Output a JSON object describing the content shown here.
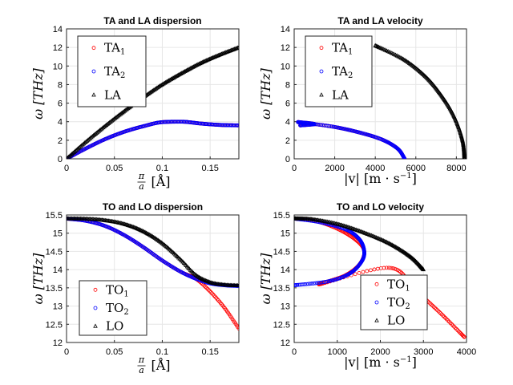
{
  "chart_data": [
    {
      "type": "scatter",
      "title": "TA and LA dispersion",
      "ylabel": "ω  [THz]",
      "xlabel_frac": [
        "π",
        "a"
      ],
      "xlabel_unit": "[Å]",
      "xlim": [
        0,
        0.18
      ],
      "ylim": [
        0,
        14
      ],
      "xticks": [
        "0",
        "0.05",
        "0.1",
        "0.15"
      ],
      "yticks": [
        "0",
        "2",
        "4",
        "6",
        "8",
        "10",
        "12",
        "14"
      ],
      "grid": true,
      "legend": {
        "placement": "top-left",
        "entries": [
          {
            "base": "TA",
            "sub": "1",
            "color": "#ff0000",
            "marker": "circle"
          },
          {
            "base": "TA",
            "sub": "2",
            "color": "#0000ff",
            "marker": "circle"
          },
          {
            "base": "LA",
            "sub": "",
            "color": "#000000",
            "marker": "triangle"
          }
        ]
      },
      "series": [
        {
          "name": "TA₁",
          "color": "#ff0000",
          "marker": "circle",
          "curve": "x",
          "x": [
            0,
            0.02,
            0.04,
            0.06,
            0.08,
            0.1,
            0.12,
            0.14,
            0.16,
            0.18
          ],
          "y": [
            0,
            1.1,
            2.1,
            2.9,
            3.5,
            3.95,
            4.0,
            3.8,
            3.65,
            3.6
          ]
        },
        {
          "name": "TA₂",
          "color": "#0000ff",
          "marker": "circle",
          "curve": "x",
          "x": [
            0,
            0.02,
            0.04,
            0.06,
            0.08,
            0.1,
            0.12,
            0.14,
            0.16,
            0.18
          ],
          "y": [
            0,
            1.1,
            2.1,
            2.9,
            3.5,
            3.95,
            4.0,
            3.8,
            3.65,
            3.6
          ]
        },
        {
          "name": "LA",
          "color": "#000000",
          "marker": "triangle",
          "curve": "x",
          "x": [
            0,
            0.02,
            0.04,
            0.06,
            0.08,
            0.1,
            0.12,
            0.14,
            0.16,
            0.18
          ],
          "y": [
            0,
            1.8,
            3.5,
            5.1,
            6.6,
            8.0,
            9.2,
            10.3,
            11.2,
            12.0
          ]
        }
      ]
    },
    {
      "type": "scatter",
      "title": "TA and LA velocity",
      "ylabel": "ω  [THz]",
      "xlabel_main": "|v|  [m · s",
      "xlabel_exp": "−1",
      "xlabel_close": "]",
      "xlim": [
        0,
        8500
      ],
      "ylim": [
        0,
        14
      ],
      "xticks": [
        "0",
        "2000",
        "4000",
        "6000",
        "8000"
      ],
      "yticks": [
        "0",
        "2",
        "4",
        "6",
        "8",
        "10",
        "12",
        "14"
      ],
      "grid": true,
      "legend": {
        "placement": "top-left",
        "entries": [
          {
            "base": "TA",
            "sub": "1",
            "color": "#ff0000",
            "marker": "circle"
          },
          {
            "base": "TA",
            "sub": "2",
            "color": "#0000ff",
            "marker": "circle"
          },
          {
            "base": "LA",
            "sub": "",
            "color": "#000000",
            "marker": "triangle"
          }
        ]
      },
      "series": [
        {
          "name": "TA₁",
          "color": "#ff0000",
          "marker": "circle",
          "curve": "y",
          "x": [
            5450,
            5100,
            4300,
            3100,
            1800,
            200,
            1000,
            300
          ],
          "y": [
            0,
            1.1,
            2.1,
            2.9,
            3.5,
            3.95,
            3.75,
            3.6
          ]
        },
        {
          "name": "TA₂",
          "color": "#0000ff",
          "marker": "circle",
          "curve": "y",
          "x": [
            5450,
            5100,
            4300,
            3100,
            1800,
            200,
            1000,
            300
          ],
          "y": [
            0,
            1.1,
            2.1,
            2.9,
            3.5,
            3.95,
            3.75,
            3.6
          ]
        },
        {
          "name": "LA",
          "color": "#000000",
          "marker": "triangle",
          "curve": "y",
          "x": [
            8400,
            8300,
            7900,
            7300,
            6500,
            5400,
            4000
          ],
          "y": [
            0,
            2.0,
            4.5,
            6.7,
            8.8,
            10.7,
            12.2
          ]
        }
      ]
    },
    {
      "type": "scatter",
      "title": "TO and LO dispersion",
      "ylabel": "ω  [THz]",
      "xlabel_frac": [
        "π",
        "a"
      ],
      "xlabel_unit": "[Å]",
      "xlim": [
        0,
        0.18
      ],
      "ylim": [
        12,
        15.5
      ],
      "xticks": [
        "0",
        "0.05",
        "0.1",
        "0.15"
      ],
      "yticks": [
        "12",
        "12.5",
        "13",
        "13.5",
        "14",
        "14.5",
        "15",
        "15.5"
      ],
      "grid": true,
      "legend": {
        "placement": "bottom-left",
        "entries": [
          {
            "base": "TO",
            "sub": "1",
            "color": "#ff0000",
            "marker": "circle"
          },
          {
            "base": "TO",
            "sub": "2",
            "color": "#0000ff",
            "marker": "circle"
          },
          {
            "base": "LO",
            "sub": "",
            "color": "#000000",
            "marker": "triangle"
          }
        ]
      },
      "series": [
        {
          "name": "TO₁",
          "color": "#ff0000",
          "marker": "circle",
          "curve": "x",
          "x": [
            0,
            0.02,
            0.04,
            0.06,
            0.08,
            0.1,
            0.12,
            0.135,
            0.15,
            0.165,
            0.18
          ],
          "y": [
            15.4,
            15.34,
            15.2,
            14.95,
            14.62,
            14.25,
            13.93,
            13.75,
            13.4,
            12.95,
            12.38
          ]
        },
        {
          "name": "TO₂",
          "color": "#0000ff",
          "marker": "circle",
          "curve": "x",
          "x": [
            0,
            0.02,
            0.04,
            0.06,
            0.08,
            0.1,
            0.12,
            0.135,
            0.15,
            0.165,
            0.18
          ],
          "y": [
            15.4,
            15.34,
            15.2,
            14.95,
            14.62,
            14.25,
            13.93,
            13.75,
            13.62,
            13.57,
            13.55
          ]
        },
        {
          "name": "LO",
          "color": "#000000",
          "marker": "triangle",
          "curve": "x",
          "x": [
            0,
            0.02,
            0.04,
            0.06,
            0.08,
            0.1,
            0.12,
            0.135,
            0.15,
            0.165,
            0.18
          ],
          "y": [
            15.4,
            15.39,
            15.35,
            15.25,
            15.05,
            14.72,
            14.25,
            13.85,
            13.65,
            13.58,
            13.56
          ]
        }
      ]
    },
    {
      "type": "scatter",
      "title": "TO and LO velocity",
      "ylabel": "ω  [THz]",
      "xlabel_main": "|v|  [m · s",
      "xlabel_exp": "−1",
      "xlabel_close": "]",
      "xlim": [
        0,
        4000
      ],
      "ylim": [
        12,
        15.5
      ],
      "xticks": [
        "0",
        "1000",
        "2000",
        "3000",
        "4000"
      ],
      "yticks": [
        "12",
        "12.5",
        "13",
        "13.5",
        "14",
        "14.5",
        "15",
        "15.5"
      ],
      "grid": true,
      "legend": {
        "placement": "bottom-right",
        "entries": [
          {
            "base": "TO",
            "sub": "1",
            "color": "#ff0000",
            "marker": "circle"
          },
          {
            "base": "TO",
            "sub": "2",
            "color": "#0000ff",
            "marker": "circle"
          },
          {
            "base": "LO",
            "sub": "",
            "color": "#000000",
            "marker": "triangle"
          }
        ]
      },
      "series": [
        {
          "name": "TO₁",
          "color": "#ff0000",
          "marker": "circle",
          "curve": "y",
          "x": [
            0,
            600,
            1200,
            1600,
            1550,
            1200,
            600,
            2200,
            2800,
            3400,
            3950
          ],
          "y": [
            15.4,
            15.3,
            15.0,
            14.6,
            14.2,
            13.85,
            13.6,
            14.05,
            13.45,
            12.8,
            12.15
          ]
        },
        {
          "name": "TO₂",
          "color": "#0000ff",
          "marker": "circle",
          "curve": "y",
          "x": [
            0,
            600,
            1200,
            1500,
            1620,
            1580,
            1300,
            800,
            0
          ],
          "y": [
            15.4,
            15.3,
            15.1,
            14.85,
            14.55,
            14.25,
            13.9,
            13.68,
            13.57
          ]
        },
        {
          "name": "LO",
          "color": "#000000",
          "marker": "triangle",
          "curve": "y",
          "x": [
            0,
            400,
            1000,
            1600,
            2200,
            2700,
            3000
          ],
          "y": [
            15.4,
            15.38,
            15.25,
            15.02,
            14.72,
            14.35,
            14.0
          ]
        }
      ]
    }
  ]
}
